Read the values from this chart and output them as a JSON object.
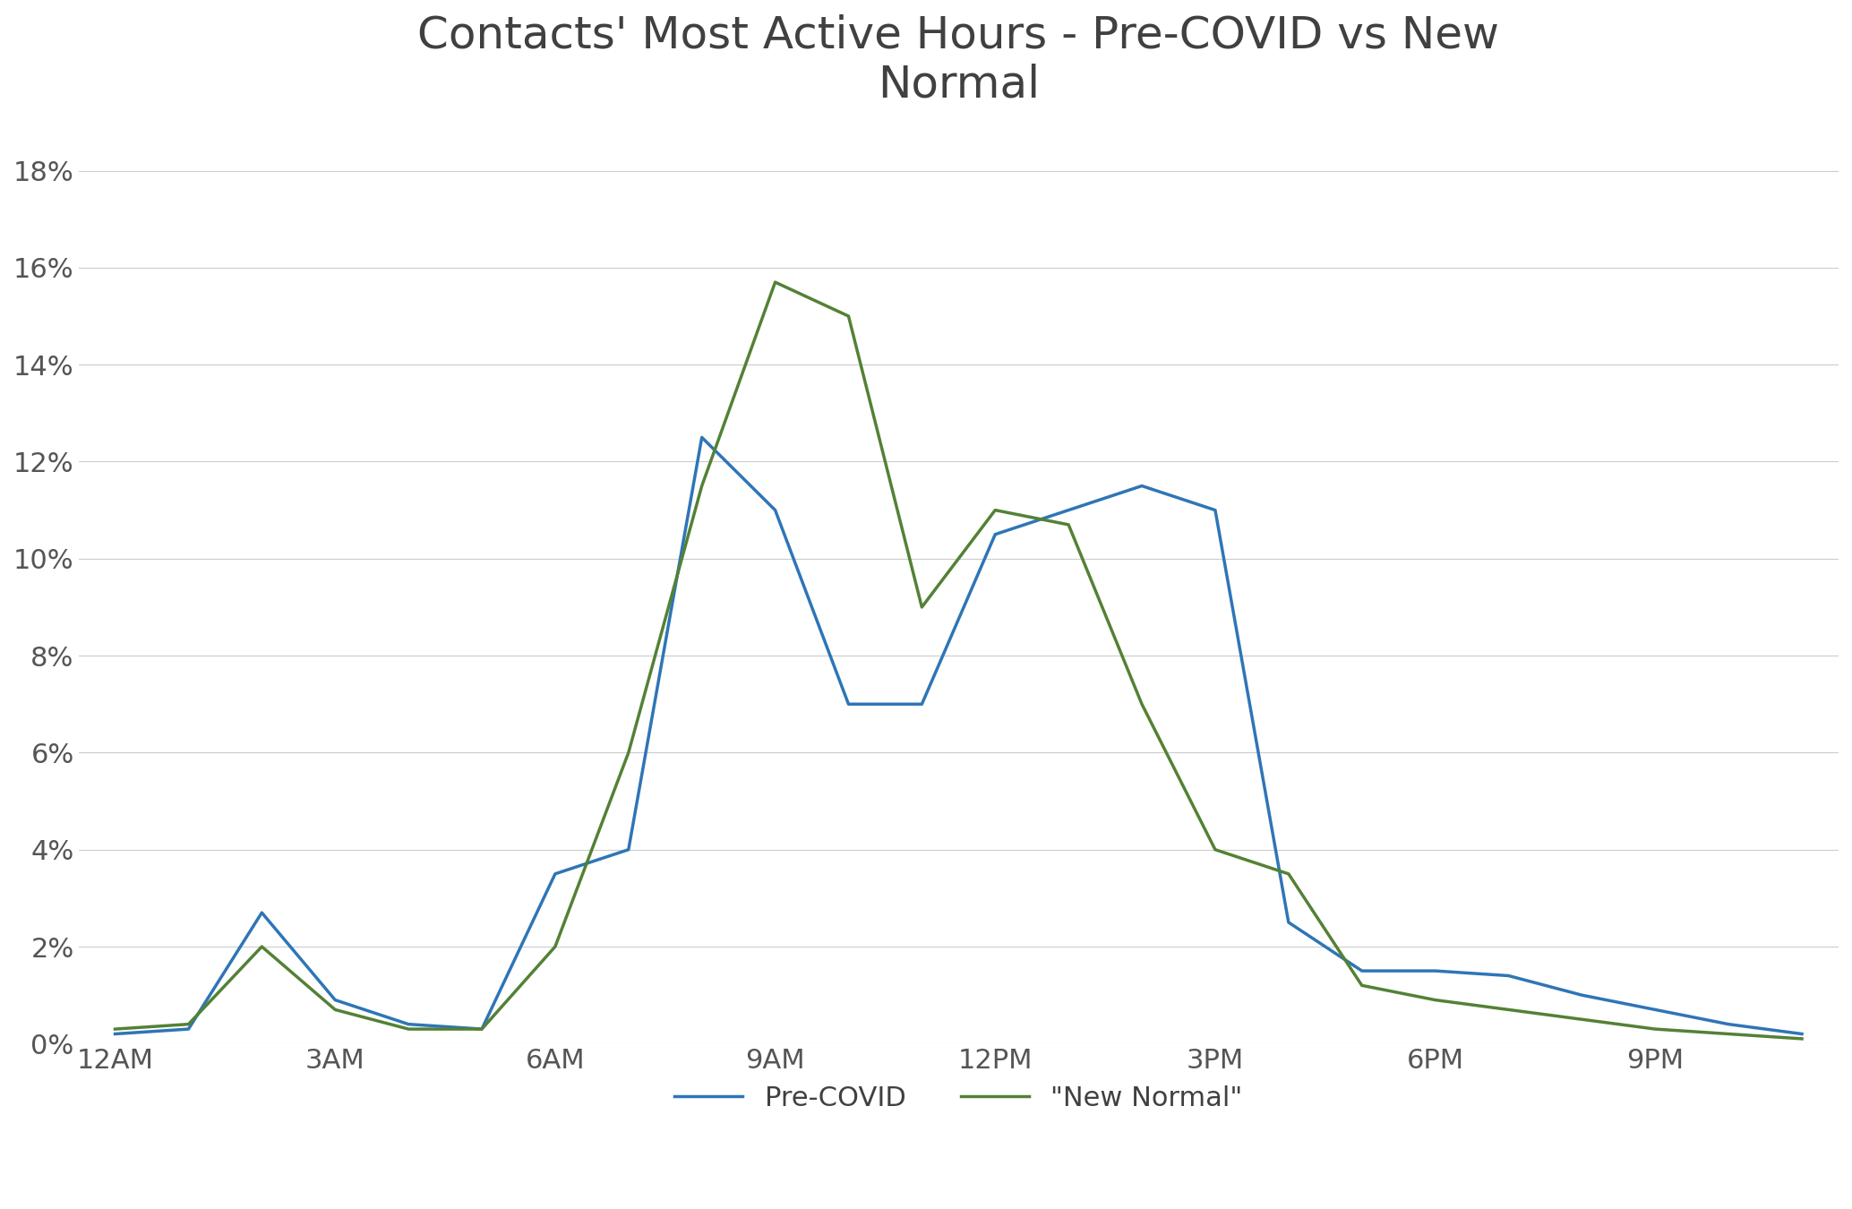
{
  "title": "Contacts' Most Active Hours - Pre-COVID vs New\nNormal",
  "x_labels": [
    "12AM",
    "3AM",
    "6AM",
    "9AM",
    "12PM",
    "3PM",
    "6PM",
    "9PM"
  ],
  "x_tick_positions": [
    0,
    3,
    6,
    9,
    12,
    15,
    18,
    21
  ],
  "pre_covid": [
    0.002,
    0.003,
    0.027,
    0.009,
    0.004,
    0.003,
    0.035,
    0.04,
    0.125,
    0.11,
    0.07,
    0.07,
    0.105,
    0.11,
    0.115,
    0.11,
    0.025,
    0.015,
    0.015,
    0.014,
    0.01,
    0.007,
    0.004,
    0.002
  ],
  "new_normal": [
    0.003,
    0.004,
    0.02,
    0.007,
    0.003,
    0.003,
    0.02,
    0.06,
    0.115,
    0.157,
    0.15,
    0.09,
    0.11,
    0.107,
    0.07,
    0.04,
    0.035,
    0.012,
    0.009,
    0.007,
    0.005,
    0.003,
    0.002,
    0.001
  ],
  "pre_covid_color": "#2e75b6",
  "new_normal_color": "#538135",
  "ylim": [
    0,
    0.19
  ],
  "yticks": [
    0,
    0.02,
    0.04,
    0.06,
    0.08,
    0.1,
    0.12,
    0.14,
    0.16,
    0.18
  ],
  "ytick_labels": [
    "0%",
    "2%",
    "4%",
    "6%",
    "8%",
    "10%",
    "12%",
    "14%",
    "16%",
    "18%"
  ],
  "line_width": 2.5,
  "legend_labels": [
    "Pre-COVID",
    "\"New Normal\""
  ],
  "background_color": "#ffffff",
  "grid_color": "#cccccc",
  "title_fontsize": 36,
  "tick_fontsize": 22,
  "legend_fontsize": 22
}
